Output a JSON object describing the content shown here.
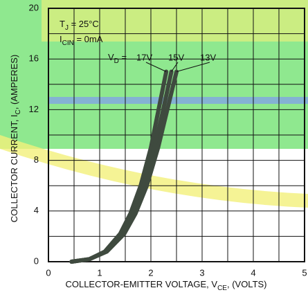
{
  "chart_data": {
    "type": "line",
    "x_label": [
      "COLLECTOR-EMITTER VOLTAGE, V",
      "CE",
      ", (VOLTS)"
    ],
    "y_label": [
      "COLLECTOR CURRENT, I",
      "C",
      ", (AMPERES)"
    ],
    "annotations": [
      [
        "T",
        "J",
        " = 25°C"
      ],
      [
        "I",
        "CIN",
        " = 0mA"
      ],
      [
        "V",
        "D",
        " = "
      ]
    ],
    "xlim": [
      0,
      5
    ],
    "ylim": [
      0,
      20
    ],
    "xticks": [
      0,
      1,
      2,
      3,
      4,
      5
    ],
    "yticks": [
      0,
      4,
      8,
      12,
      16,
      20
    ],
    "xgrid": [
      0,
      0.5,
      1,
      1.5,
      2,
      2.5,
      3,
      3.5,
      4,
      4.5,
      5
    ],
    "ygrid": [
      0,
      2,
      4,
      6,
      8,
      10,
      12,
      14,
      16,
      18,
      20
    ],
    "grid": true,
    "series": [
      {
        "name": "17V",
        "color": "#3f4a3f",
        "x": [
          0.45,
          0.8,
          1.1,
          1.4,
          1.6,
          1.8,
          2.0,
          2.15,
          2.3
        ],
        "values": [
          0,
          0.2,
          0.8,
          2.2,
          3.8,
          6,
          9,
          12,
          15
        ]
      },
      {
        "name": "15V",
        "color": "#3f4a3f",
        "x": [
          0.45,
          0.8,
          1.12,
          1.44,
          1.65,
          1.86,
          2.07,
          2.24,
          2.4
        ],
        "values": [
          0,
          0.2,
          0.8,
          2.2,
          3.8,
          6,
          9,
          12,
          15
        ]
      },
      {
        "name": "13V",
        "color": "#3f4a3f",
        "x": [
          0.45,
          0.8,
          1.14,
          1.48,
          1.7,
          1.92,
          2.14,
          2.32,
          2.5
        ],
        "values": [
          0,
          0.2,
          0.8,
          2.2,
          3.8,
          6,
          9,
          12,
          15
        ]
      }
    ]
  }
}
